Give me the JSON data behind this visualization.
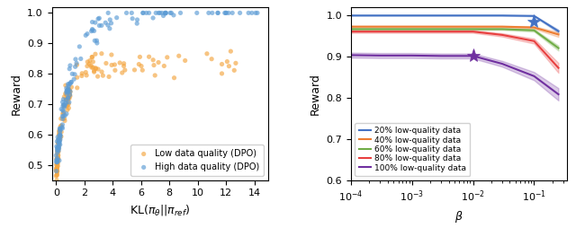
{
  "beta_values": [
    0.0001,
    0.0003,
    0.001,
    0.003,
    0.01,
    0.03,
    0.1,
    0.25
  ],
  "line_20_mean": [
    0.999,
    0.999,
    0.999,
    0.999,
    0.999,
    0.999,
    0.998,
    0.961
  ],
  "line_20_std": [
    0.0005,
    0.0005,
    0.0005,
    0.0005,
    0.0005,
    0.0005,
    0.001,
    0.004
  ],
  "line_40_mean": [
    0.972,
    0.972,
    0.972,
    0.972,
    0.972,
    0.972,
    0.97,
    0.953
  ],
  "line_40_std": [
    0.002,
    0.002,
    0.002,
    0.002,
    0.002,
    0.002,
    0.003,
    0.006
  ],
  "line_60_mean": [
    0.966,
    0.966,
    0.966,
    0.966,
    0.966,
    0.966,
    0.963,
    0.92
  ],
  "line_60_std": [
    0.002,
    0.002,
    0.002,
    0.002,
    0.002,
    0.002,
    0.003,
    0.006
  ],
  "line_80_mean": [
    0.96,
    0.96,
    0.96,
    0.96,
    0.96,
    0.952,
    0.937,
    0.872
  ],
  "line_80_std": [
    0.003,
    0.003,
    0.003,
    0.003,
    0.003,
    0.004,
    0.006,
    0.012
  ],
  "line_100_mean": [
    0.903,
    0.902,
    0.902,
    0.901,
    0.901,
    0.882,
    0.852,
    0.808
  ],
  "line_100_std": [
    0.006,
    0.006,
    0.006,
    0.006,
    0.006,
    0.007,
    0.01,
    0.015
  ],
  "star_blue_beta": 0.1,
  "star_blue_reward": 0.985,
  "star_purple_beta": 0.01,
  "star_purple_reward": 0.901,
  "line_colors": [
    "#4472c4",
    "#ed7d31",
    "#70ad47",
    "#e84040",
    "#7030a0"
  ],
  "line_labels": [
    "20% low-quality data",
    "40% low-quality data",
    "60% low-quality data",
    "80% low-quality data",
    "100% low-quality data"
  ],
  "scatter_blue_color": "#5b9bd5",
  "scatter_orange_color": "#f4a53f",
  "xlim_scatter": [
    -0.3,
    15
  ],
  "ylim_scatter": [
    0.45,
    1.02
  ],
  "ylim_line": [
    0.6,
    1.02
  ],
  "ylabel": "Reward"
}
